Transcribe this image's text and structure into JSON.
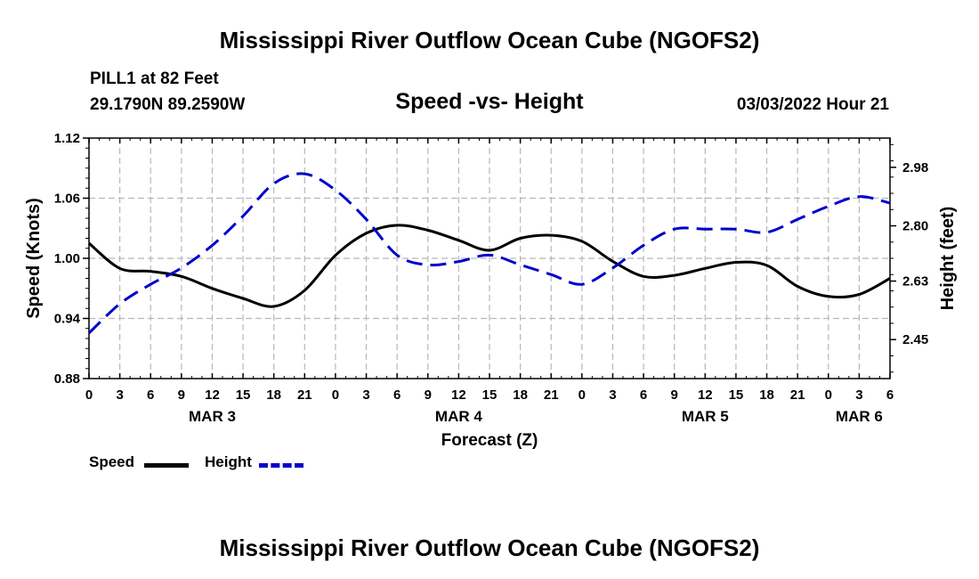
{
  "header": {
    "title": "Mississippi River Outflow Ocean Cube (NGOFS2)",
    "station": "PILL1 at 82 Feet",
    "coords": "29.1790N  89.2590W",
    "subtitle": "Speed -vs- Height",
    "datetime": "03/03/2022 Hour 21"
  },
  "footer": {
    "title": "Mississippi River Outflow Ocean Cube (NGOFS2)"
  },
  "legend": {
    "speed_label": "Speed",
    "height_label": "Height"
  },
  "colors": {
    "speed": "#000000",
    "height": "#0000cc",
    "grid": "#b8b8b8"
  },
  "chart_data": {
    "type": "line",
    "title": "Speed -vs- Height",
    "xlabel": "Forecast (Z)",
    "ylabel": "Speed (Knots)",
    "y2label": "Height (feet)",
    "xlim": [
      0,
      78
    ],
    "ylim": [
      0.88,
      1.12
    ],
    "y2lim": [
      2.33,
      3.07
    ],
    "grid": true,
    "legend_position": "bottom-left",
    "x_tick_labels": [
      "0",
      "3",
      "6",
      "9",
      "12",
      "15",
      "18",
      "21",
      "0",
      "3",
      "6",
      "9",
      "12",
      "15",
      "18",
      "21",
      "0",
      "3",
      "6",
      "9",
      "12",
      "15",
      "18",
      "21",
      "0",
      "3",
      "6"
    ],
    "y_ticks": [
      0.88,
      0.94,
      1.0,
      1.06,
      1.12
    ],
    "y_tick_labels": [
      "0.88",
      "0.94",
      "1.00",
      "1.06",
      "1.12"
    ],
    "y2_ticks": [
      2.45,
      2.63,
      2.8,
      2.98
    ],
    "y2_tick_labels": [
      "2.45",
      "2.63",
      "2.80",
      "2.98"
    ],
    "date_labels": [
      {
        "label": "MAR 3",
        "x": 12
      },
      {
        "label": "MAR 4",
        "x": 36
      },
      {
        "label": "MAR 5",
        "x": 60
      },
      {
        "label": "MAR 6",
        "x": 75
      }
    ],
    "series": [
      {
        "name": "Speed",
        "axis": "left",
        "style": "solid",
        "x": [
          0,
          3,
          6,
          9,
          12,
          15,
          18,
          21,
          24,
          27,
          30,
          33,
          36,
          39,
          42,
          45,
          48,
          51,
          54,
          57,
          60,
          63,
          66,
          69,
          72,
          75,
          78
        ],
        "values": [
          1.015,
          0.99,
          0.987,
          0.982,
          0.97,
          0.96,
          0.952,
          0.968,
          1.003,
          1.025,
          1.033,
          1.028,
          1.018,
          1.008,
          1.02,
          1.023,
          1.017,
          0.997,
          0.982,
          0.983,
          0.99,
          0.996,
          0.993,
          0.972,
          0.962,
          0.964,
          0.98
        ]
      },
      {
        "name": "Height",
        "axis": "right",
        "style": "dashed",
        "x": [
          0,
          3,
          6,
          9,
          12,
          15,
          18,
          21,
          24,
          27,
          30,
          33,
          36,
          39,
          42,
          45,
          48,
          51,
          54,
          57,
          60,
          63,
          66,
          69,
          72,
          75,
          78
        ],
        "values": [
          2.47,
          2.56,
          2.62,
          2.67,
          2.74,
          2.83,
          2.93,
          2.96,
          2.91,
          2.82,
          2.71,
          2.68,
          2.69,
          2.71,
          2.68,
          2.65,
          2.62,
          2.67,
          2.74,
          2.79,
          2.79,
          2.79,
          2.78,
          2.82,
          2.86,
          2.89,
          2.87
        ]
      }
    ]
  }
}
